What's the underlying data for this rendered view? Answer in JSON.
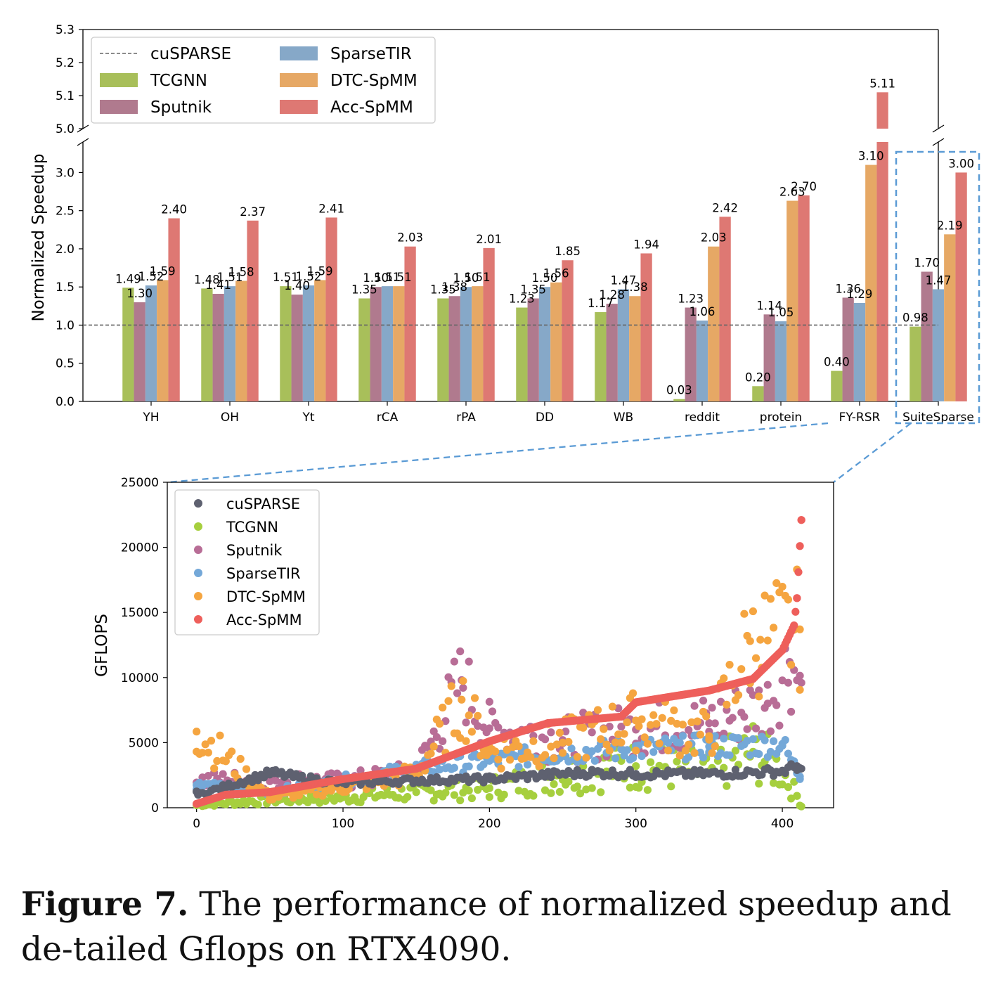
{
  "colors": {
    "cuSPARSE": "#666666",
    "TCGNN": "#a8bf5a",
    "Sputnik": "#b07a8e",
    "SparseTIR": "#86a8c8",
    "DTC-SpMM": "#e6a865",
    "Acc-SpMM": "#de7873",
    "scatter_cuSPARSE": "#5e6170",
    "scatter_TCGNN": "#a6cf3e",
    "scatter_Sputnik": "#b86d96",
    "scatter_SparseTIR": "#74a8d8",
    "scatter_DTC-SpMM": "#f5a540",
    "scatter_Acc-SpMM": "#ee5f5b",
    "highlight_box": "#5b9bd5"
  },
  "chart_data": [
    {
      "type": "bar",
      "title": "",
      "xlabel": "",
      "ylabel": "Normalized Speedup",
      "ylim_lower": [
        0.0,
        3.4
      ],
      "ylim_upper": [
        5.0,
        5.3
      ],
      "yticks_lower": [
        "0.0",
        "0.5",
        "1.0",
        "1.5",
        "2.0",
        "2.5",
        "3.0"
      ],
      "yticks_upper": [
        "5.0",
        "5.1",
        "5.2",
        "5.3"
      ],
      "broken_axis": true,
      "grid": false,
      "legend_position": "top-left",
      "baseline": {
        "name": "cuSPARSE",
        "value": 1.0,
        "style": "dashed"
      },
      "legend": [
        "cuSPARSE",
        "TCGNN",
        "Sputnik",
        "SparseTIR",
        "DTC-SpMM",
        "Acc-SpMM"
      ],
      "categories": [
        "YH",
        "OH",
        "Yt",
        "rCA",
        "rPA",
        "DD",
        "WB",
        "reddit",
        "protein",
        "FY-RSR",
        "SuiteSparse"
      ],
      "series": [
        {
          "name": "TCGNN",
          "values": [
            1.49,
            1.48,
            1.51,
            1.35,
            1.35,
            1.23,
            1.17,
            0.03,
            0.2,
            0.4,
            0.98
          ],
          "labels": [
            "1.49",
            "1.48",
            "1.51",
            "1.35",
            "1.35",
            "1.23",
            "1.17",
            "0.03",
            "0.20",
            "0.40",
            "0.98"
          ]
        },
        {
          "name": "Sputnik",
          "values": [
            1.3,
            1.41,
            1.4,
            1.5,
            1.38,
            1.35,
            1.28,
            1.23,
            1.14,
            1.36,
            1.7
          ],
          "labels": [
            "1.30",
            "1.41",
            "1.40",
            "1.50",
            "1.38",
            "1.35",
            "1.28",
            "1.23",
            "1.14",
            "1.36",
            "1.70"
          ]
        },
        {
          "name": "SparseTIR",
          "values": [
            1.52,
            1.51,
            1.52,
            1.51,
            1.5,
            1.5,
            1.47,
            1.06,
            1.05,
            1.29,
            1.47
          ],
          "labels": [
            "1.52",
            "1.51",
            "1.52",
            "1.51",
            "1.50",
            "1.50",
            "1.47",
            "1.06",
            "1.05",
            "1.29",
            "1.47"
          ]
        },
        {
          "name": "DTC-SpMM",
          "values": [
            1.59,
            1.58,
            1.59,
            1.51,
            1.51,
            1.56,
            1.38,
            2.03,
            2.63,
            3.1,
            2.19
          ],
          "labels": [
            "1.59",
            "1.58",
            "1.59",
            "1.51",
            "1.51",
            "1.56",
            "1.38",
            "2.03",
            "2.63",
            "3.10",
            "2.19"
          ]
        },
        {
          "name": "Acc-SpMM",
          "values": [
            2.4,
            2.37,
            2.41,
            2.03,
            2.01,
            1.85,
            1.94,
            2.42,
            2.7,
            5.11,
            3.0
          ],
          "labels": [
            "2.40",
            "2.37",
            "2.41",
            "2.03",
            "2.01",
            "1.85",
            "1.94",
            "2.42",
            "2.70",
            "5.11",
            "3.00"
          ]
        }
      ],
      "highlighted_category": "SuiteSparse"
    },
    {
      "type": "scatter",
      "title": "",
      "xlabel": "",
      "ylabel": "GFLOPS",
      "xlim": [
        -20,
        435
      ],
      "ylim": [
        0,
        25000
      ],
      "xticks": [
        "0",
        "100",
        "200",
        "300",
        "400"
      ],
      "yticks": [
        "0",
        "5000",
        "10000",
        "15000",
        "20000",
        "25000"
      ],
      "grid": false,
      "legend_position": "top-left",
      "legend": [
        "cuSPARSE",
        "TCGNN",
        "Sputnik",
        "SparseTIR",
        "DTC-SpMM",
        "Acc-SpMM"
      ],
      "n_points_per_series": 414,
      "series": [
        {
          "name": "cuSPARSE",
          "points": [
            [
              0,
              1250
            ],
            [
              1,
              1000
            ],
            [
              52,
              2700
            ],
            [
              53,
              2650
            ],
            [
              70,
              2300
            ],
            [
              100,
              1900
            ],
            [
              150,
              2100
            ],
            [
              200,
              2200
            ],
            [
              250,
              2600
            ],
            [
              270,
              2700
            ],
            [
              300,
              2600
            ],
            [
              350,
              2600
            ],
            [
              400,
              2800
            ],
            [
              410,
              3200
            ],
            [
              413,
              3000
            ]
          ]
        },
        {
          "name": "TCGNN",
          "points": [
            [
              0,
              200
            ],
            [
              50,
              600
            ],
            [
              100,
              800
            ],
            [
              150,
              1200
            ],
            [
              200,
              1500
            ],
            [
              250,
              2600
            ],
            [
              300,
              3200
            ],
            [
              350,
              2800
            ],
            [
              380,
              4300
            ],
            [
              400,
              2800
            ],
            [
              410,
              900
            ],
            [
              413,
              100
            ]
          ]
        },
        {
          "name": "Sputnik",
          "points": [
            [
              21,
              2100
            ],
            [
              54,
              2100
            ],
            [
              100,
              2000
            ],
            [
              150,
              2700
            ],
            [
              181,
              9800
            ],
            [
              200,
              6100
            ],
            [
              250,
              5200
            ],
            [
              300,
              6000
            ],
            [
              350,
              6500
            ],
            [
              390,
              8000
            ],
            [
              405,
              11200
            ],
            [
              413,
              9600
            ]
          ]
        },
        {
          "name": "SparseTIR",
          "points": [
            [
              0,
              1750
            ],
            [
              50,
              1200
            ],
            [
              100,
              2100
            ],
            [
              150,
              3000
            ],
            [
              200,
              3600
            ],
            [
              250,
              4200
            ],
            [
              300,
              4500
            ],
            [
              350,
              4700
            ],
            [
              400,
              4900
            ],
            [
              412,
              2400
            ]
          ]
        },
        {
          "name": "DTC-SpMM",
          "points": [
            [
              0,
              5850
            ],
            [
              50,
              800
            ],
            [
              100,
              1600
            ],
            [
              150,
              2600
            ],
            [
              181,
              8300
            ],
            [
              200,
              4300
            ],
            [
              250,
              5000
            ],
            [
              300,
              6700
            ],
            [
              350,
              5500
            ],
            [
              378,
              12800
            ],
            [
              385,
              12900
            ],
            [
              412,
              13700
            ]
          ]
        },
        {
          "name": "Acc-SpMM",
          "points": [
            [
              0,
              300
            ],
            [
              20,
              1000
            ],
            [
              50,
              1200
            ],
            [
              100,
              2200
            ],
            [
              150,
              3000
            ],
            [
              200,
              5100
            ],
            [
              240,
              6500
            ],
            [
              290,
              7000
            ],
            [
              300,
              8100
            ],
            [
              350,
              9000
            ],
            [
              380,
              9900
            ],
            [
              400,
              12100
            ],
            [
              408,
              14000
            ],
            [
              410,
              16100
            ],
            [
              413,
              22100
            ]
          ]
        }
      ]
    }
  ],
  "caption": {
    "label": "Figure 7.",
    "text": " The performance of normalized speedup and de-tailed Gflops on RTX4090."
  }
}
